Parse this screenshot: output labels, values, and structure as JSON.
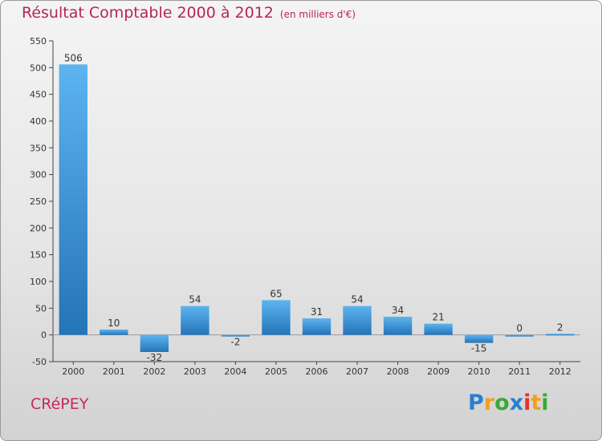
{
  "chart_data": {
    "type": "bar",
    "title": "Résultat Comptable 2000 à 2012",
    "subtitle": "(en milliers d'€)",
    "categories": [
      "2000",
      "2001",
      "2002",
      "2003",
      "2004",
      "2005",
      "2006",
      "2007",
      "2008",
      "2009",
      "2010",
      "2011",
      "2012"
    ],
    "values": [
      506,
      10,
      -32,
      54,
      -2,
      65,
      31,
      54,
      34,
      21,
      -15,
      0,
      2
    ],
    "ylim": [
      -50,
      550
    ],
    "yticks": [
      -50,
      0,
      50,
      100,
      150,
      200,
      250,
      300,
      350,
      400,
      450,
      500,
      550
    ],
    "xlabel": "",
    "ylabel": "",
    "colors": {
      "bar_top": "#5db4ef",
      "bar_bottom": "#2474b8",
      "title": "#b8264f",
      "axis": "#444444",
      "label": "#333333"
    }
  },
  "footer": {
    "commune": "CRéPEY",
    "brand_letters": [
      "P",
      "r",
      "o",
      "x",
      "i",
      "t",
      "i"
    ]
  }
}
